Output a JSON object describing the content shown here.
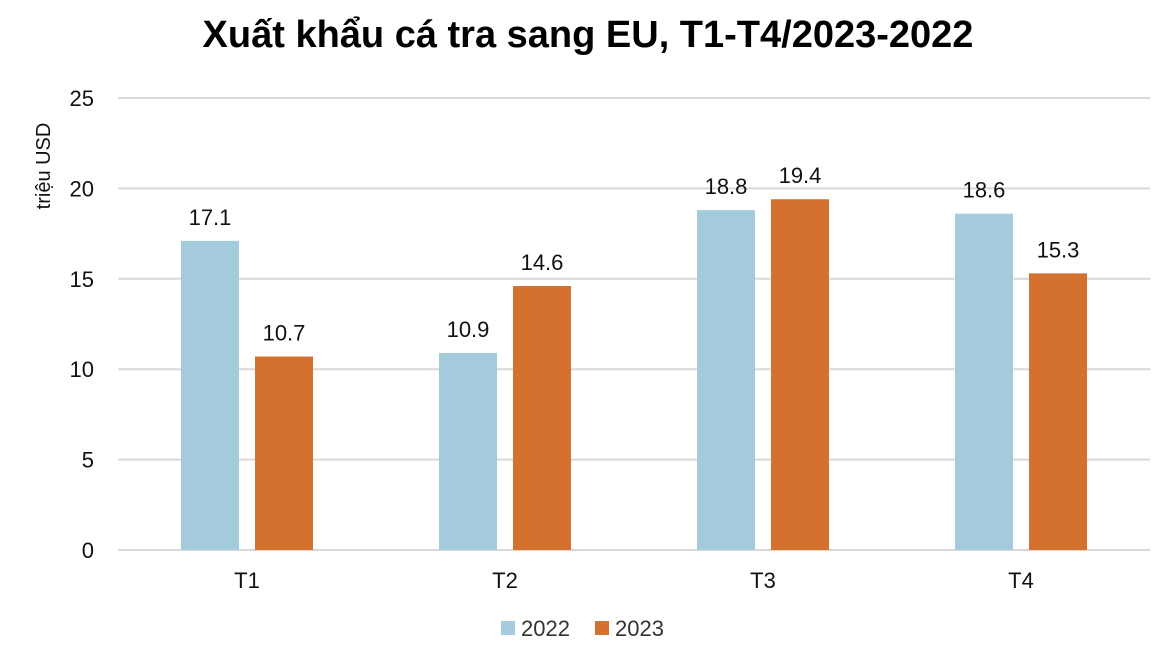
{
  "chart_data": {
    "type": "bar",
    "title": "Xuất khẩu cá tra sang EU, T1-T4/2023-2022",
    "ylabel": "triệu USD",
    "xlabel": "",
    "categories": [
      "T1",
      "T2",
      "T3",
      "T4"
    ],
    "series": [
      {
        "name": "2022",
        "values": [
          17.1,
          10.9,
          18.8,
          18.6
        ],
        "color": "#a3cbdb"
      },
      {
        "name": "2023",
        "values": [
          10.7,
          14.6,
          19.4,
          15.3
        ],
        "color": "#d4712e"
      }
    ],
    "ylim": [
      0,
      25
    ],
    "yticks": [
      0,
      5,
      10,
      15,
      20,
      25
    ],
    "grid": true,
    "legend_position": "bottom",
    "data_labels": [
      [
        "17.1",
        "10.9",
        "18.8",
        "18.6"
      ],
      [
        "10.7",
        "14.6",
        "19.4",
        "15.3"
      ]
    ],
    "gridline_color": "#d9d9d9"
  }
}
